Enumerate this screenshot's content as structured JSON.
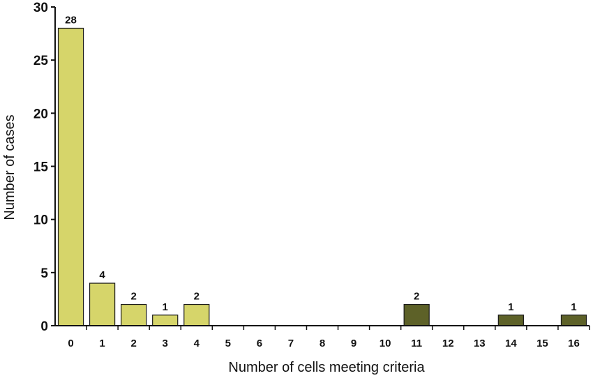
{
  "chart_data": {
    "type": "bar",
    "title": "",
    "xlabel": "Number of cells meeting criteria",
    "ylabel": "Number of cases",
    "ylim": [
      0,
      30
    ],
    "yticks": [
      "0",
      "5",
      "10",
      "15",
      "20",
      "25",
      "30"
    ],
    "grid": false,
    "legend": "none",
    "categories": [
      "0",
      "1",
      "2",
      "3",
      "4",
      "5",
      "6",
      "7",
      "8",
      "9",
      "10",
      "11",
      "12",
      "13",
      "14",
      "15",
      "16"
    ],
    "values": [
      28,
      4,
      2,
      1,
      2,
      0,
      0,
      0,
      0,
      0,
      0,
      2,
      0,
      0,
      1,
      0,
      1
    ],
    "data_labels": [
      "28",
      "4",
      "2",
      "1",
      "2",
      "",
      "",
      "",
      "",
      "",
      "",
      "2",
      "",
      "",
      "1",
      "",
      "1"
    ],
    "bar_colors": [
      "#d6d56a",
      "#d6d56a",
      "#d6d56a",
      "#d6d56a",
      "#d6d56a",
      "#d6d56a",
      "#d6d56a",
      "#d6d56a",
      "#d6d56a",
      "#d6d56a",
      "#d6d56a",
      "#5d6128",
      "#5d6128",
      "#5d6128",
      "#5d6128",
      "#5d6128",
      "#5d6128"
    ],
    "colors": {
      "axis": "#111111",
      "bar_stroke": "#1a1a1a"
    }
  }
}
